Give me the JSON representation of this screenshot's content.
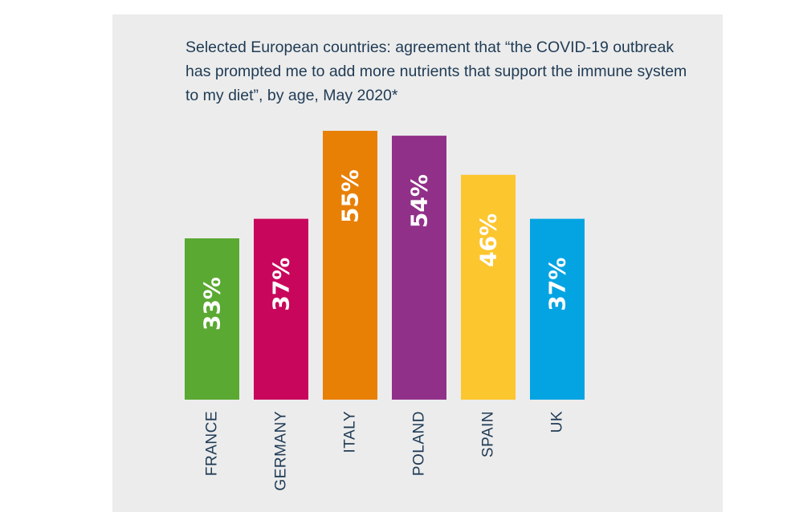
{
  "chart_data": {
    "type": "bar",
    "title": "Selected European countries: agreement that “the COVID-19 outbreak has prompted me to add more nutrients that support the immune system to my diet”, by age, May 2020*",
    "categories": [
      "FRANCE",
      "GERMANY",
      "ITALY",
      "POLAND",
      "SPAIN",
      "UK"
    ],
    "values": [
      33,
      37,
      55,
      54,
      46,
      37
    ],
    "value_labels": [
      "33%",
      "37%",
      "55%",
      "54%",
      "46%",
      "37%"
    ],
    "colors": [
      "#5aa932",
      "#c8075c",
      "#e88005",
      "#913089",
      "#fcc62f",
      "#04a4e3"
    ],
    "xlabel": "",
    "ylabel": "",
    "ylim": [
      0,
      55
    ],
    "grid": false,
    "legend": "none"
  }
}
